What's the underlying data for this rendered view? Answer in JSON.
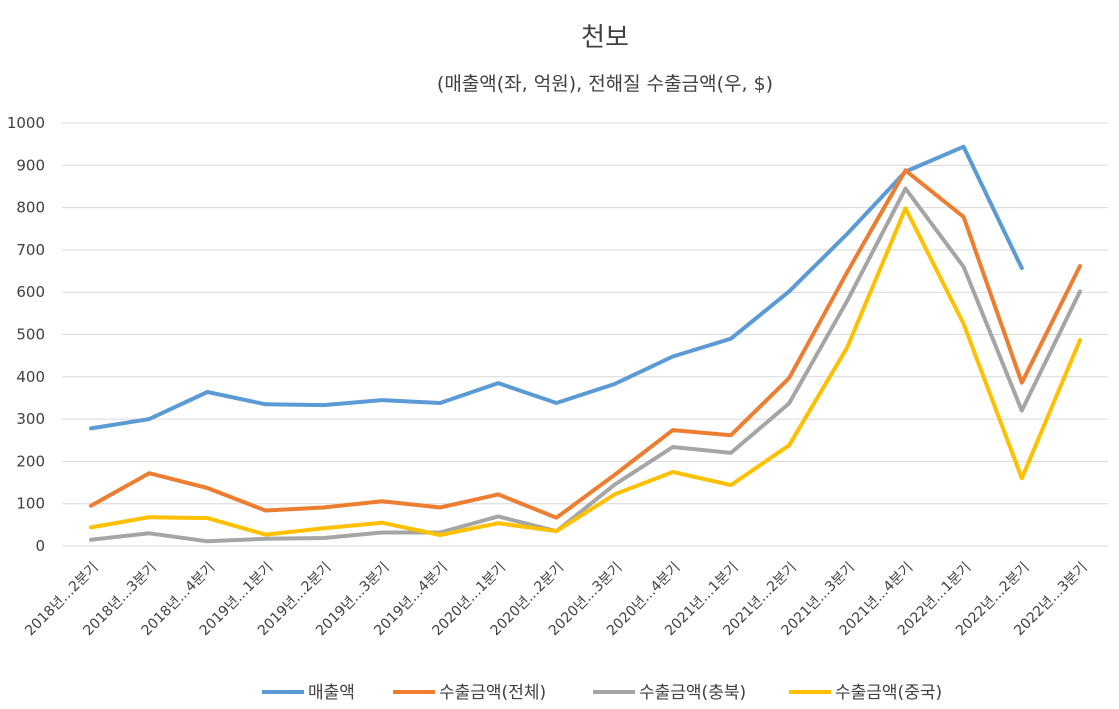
{
  "chart_data": {
    "type": "line",
    "title": "천보",
    "subtitle": "(매출액(좌, 억원), 전해질 수출금액(우, $)",
    "ylim": [
      0,
      1000
    ],
    "yticks": [
      "0",
      "100",
      "200",
      "300",
      "400",
      "500",
      "600",
      "700",
      "800",
      "900",
      "1000"
    ],
    "grid": true,
    "legend_position": "bottom",
    "categories": [
      "2018년...2분기",
      "2018년...3분기",
      "2018년...4분기",
      "2019년...1분기",
      "2019년...2분기",
      "2019년...3분기",
      "2019년...4분기",
      "2020년...1분기",
      "2020년...2분기",
      "2020년...3분기",
      "2020년...4분기",
      "2021년...1분기",
      "2021년...2분기",
      "2021년...3분기",
      "2021년...4분기",
      "2022년...1분기",
      "2022년...2분기",
      "2022년...3분기"
    ],
    "series": [
      {
        "name": "매출액",
        "color": "#5b9bd5",
        "values": [
          278,
          300,
          364,
          335,
          333,
          345,
          338,
          385,
          338,
          383,
          448,
          490,
          602,
          738,
          885,
          944,
          657,
          null
        ]
      },
      {
        "name": "수출금액(전체)",
        "color": "#ed7d31",
        "values": [
          95,
          172,
          137,
          84,
          91,
          106,
          91,
          122,
          67,
          168,
          274,
          262,
          397,
          648,
          888,
          778,
          386,
          662
        ]
      },
      {
        "name": "수출금액(충북)",
        "color": "#a5a5a5",
        "values": [
          15,
          30,
          11,
          17,
          19,
          32,
          32,
          70,
          35,
          145,
          234,
          220,
          337,
          580,
          845,
          660,
          320,
          602
        ]
      },
      {
        "name": "수출금액(중국)",
        "color": "#ffc000",
        "values": [
          44,
          68,
          66,
          27,
          42,
          55,
          26,
          54,
          35,
          122,
          175,
          144,
          238,
          470,
          798,
          525,
          160,
          487
        ]
      }
    ]
  }
}
